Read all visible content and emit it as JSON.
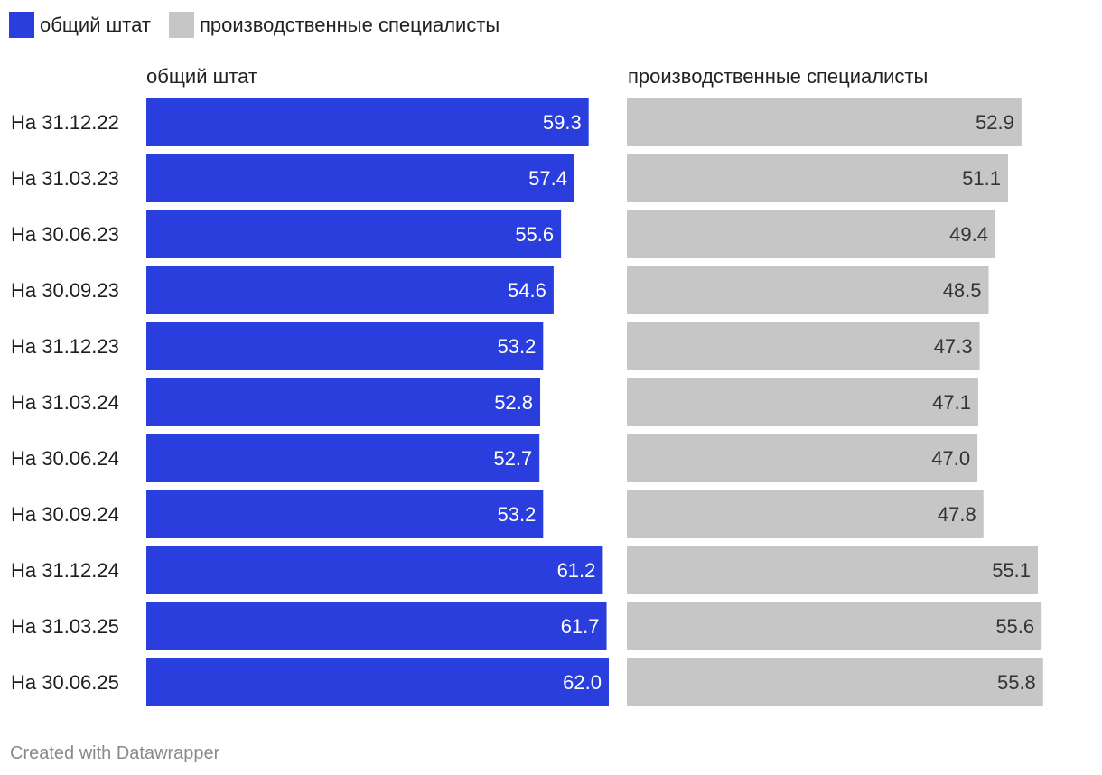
{
  "legend": [
    {
      "label": "общий штат",
      "color": "#2a3ddd"
    },
    {
      "label": "производственные специалисты",
      "color": "#c6c6c6"
    }
  ],
  "panel_titles": [
    "общий штат",
    "производственные специалисты"
  ],
  "footer": "Created with Datawrapper",
  "chart_data": {
    "type": "bar",
    "orientation": "horizontal",
    "categories": [
      "На 31.12.22",
      "На 31.03.23",
      "На 30.06.23",
      "На 30.09.23",
      "На 31.12.23",
      "На 31.03.24",
      "На 30.06.24",
      "На 30.09.24",
      "На 31.12.24",
      "На 31.03.25",
      "На 30.06.25"
    ],
    "series": [
      {
        "name": "общий штат",
        "color": "#2a3ddd",
        "label_color": "#ffffff",
        "values": [
          59.3,
          57.4,
          55.6,
          54.6,
          53.2,
          52.8,
          52.7,
          53.2,
          61.2,
          61.7,
          62.0
        ]
      },
      {
        "name": "производственные специалисты",
        "color": "#c6c6c6",
        "label_color": "#333333",
        "values": [
          52.9,
          51.1,
          49.4,
          48.5,
          47.3,
          47.1,
          47.0,
          47.8,
          55.1,
          55.6,
          55.8
        ]
      }
    ],
    "xlim": [
      0,
      62.0
    ]
  }
}
